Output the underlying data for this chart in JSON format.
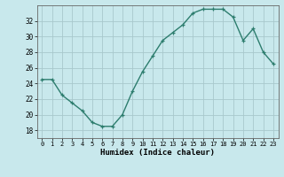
{
  "x": [
    0,
    1,
    2,
    3,
    4,
    5,
    6,
    7,
    8,
    9,
    10,
    11,
    12,
    13,
    14,
    15,
    16,
    17,
    18,
    19,
    20,
    21,
    22,
    23
  ],
  "y": [
    24.5,
    24.5,
    22.5,
    21.5,
    20.5,
    19.0,
    18.5,
    18.5,
    20.0,
    23.0,
    25.5,
    27.5,
    29.5,
    30.5,
    31.5,
    33.0,
    33.5,
    33.5,
    33.5,
    32.5,
    29.5,
    31.0,
    28.0,
    26.5
  ],
  "line_color": "#2d7d6e",
  "marker": "+",
  "bg_color": "#c8e8ec",
  "grid_color": "#a8c8cc",
  "xlabel": "Humidex (Indice chaleur)",
  "ylim": [
    17,
    34
  ],
  "yticks": [
    18,
    20,
    22,
    24,
    26,
    28,
    30,
    32
  ],
  "xlim": [
    -0.5,
    23.5
  ],
  "xticks": [
    0,
    1,
    2,
    3,
    4,
    5,
    6,
    7,
    8,
    9,
    10,
    11,
    12,
    13,
    14,
    15,
    16,
    17,
    18,
    19,
    20,
    21,
    22,
    23
  ]
}
